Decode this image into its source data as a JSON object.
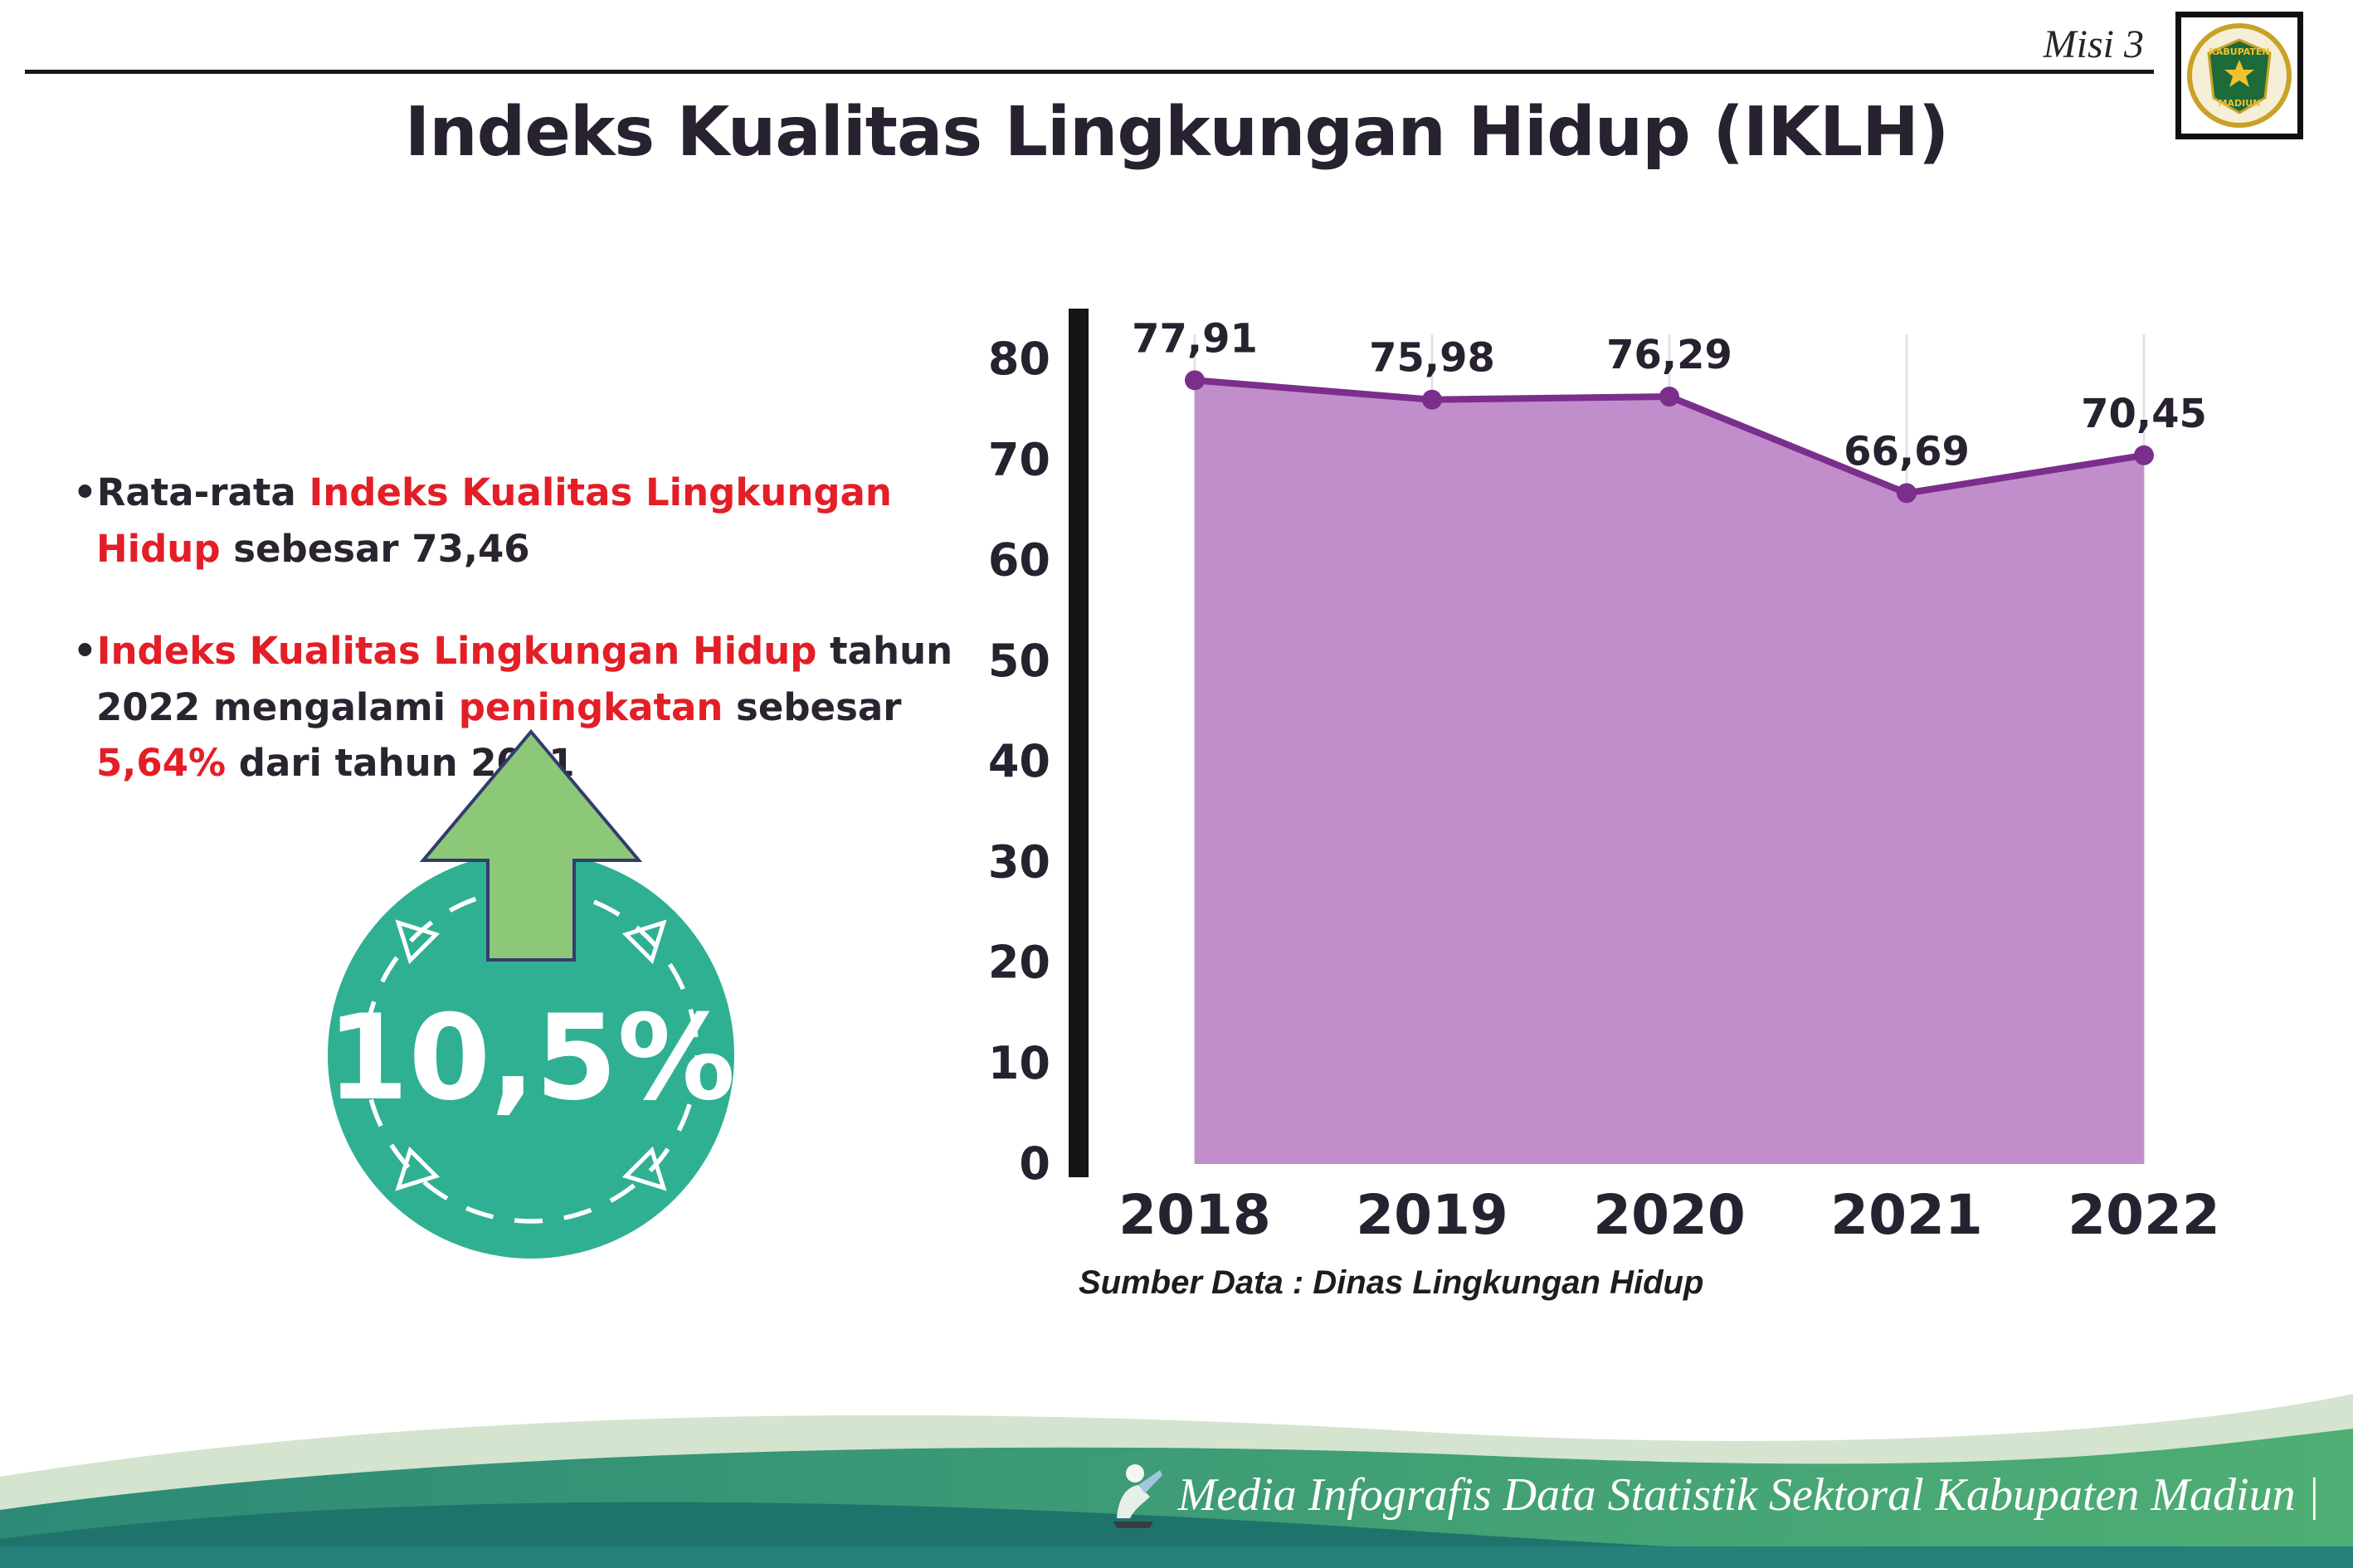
{
  "colors": {
    "accent_red": "#e31e26",
    "ink": "#2a2430",
    "teal_circle": "#2fb093",
    "arrow_green": "#8cc878",
    "arrow_outline": "#333c6e",
    "chart_fill": "#c18ecb",
    "chart_line": "#7c2e8c",
    "footer_mint": "#d4e4cf",
    "footer_green_left": "#2d8a77",
    "footer_green_right": "#4fae74",
    "footer_dark_teal": "#1e746b"
  },
  "header": {
    "misi_label": "Misi 3",
    "logo": {
      "name": "Kabupaten Madiun",
      "text_top": "KABUPATEN",
      "text_bottom": "MADIUN"
    }
  },
  "title": "Indeks Kualitas Lingkungan Hidup (IKLH)",
  "bullets": [
    {
      "segments": [
        {
          "text": "Rata-rata ",
          "color": "dark"
        },
        {
          "text": "Indeks Kualitas Lingkungan Hidup",
          "color": "red"
        },
        {
          "text": " sebesar 73,46",
          "color": "dark"
        }
      ]
    },
    {
      "segments": [
        {
          "text": "Indeks Kualitas Lingkungan Hidup",
          "color": "red"
        },
        {
          "text": " tahun 2022 mengalami ",
          "color": "dark"
        },
        {
          "text": "peningkatan",
          "color": "red"
        },
        {
          "text": " sebesar ",
          "color": "dark"
        },
        {
          "text": "5,64%",
          "color": "red"
        },
        {
          "text": " dari tahun 2021",
          "color": "dark"
        }
      ]
    }
  ],
  "badge": {
    "value": "10,5%"
  },
  "chart_data": {
    "type": "area",
    "categories": [
      "2018",
      "2019",
      "2020",
      "2021",
      "2022"
    ],
    "values": [
      77.91,
      75.98,
      76.29,
      66.69,
      70.45
    ],
    "value_labels": [
      "77,91",
      "75,98",
      "76,29",
      "66,69",
      "70,45"
    ],
    "title": "",
    "xlabel": "",
    "ylabel": "",
    "ylim": [
      0,
      80
    ],
    "ytick_step": 10,
    "grid": "faint-vertical",
    "legend": false,
    "source": "Sumber Data : Dinas Lingkungan Hidup"
  },
  "footer": {
    "credit": "Media Infografis Data Statistik Sektoral Kabupaten Madiun |"
  }
}
